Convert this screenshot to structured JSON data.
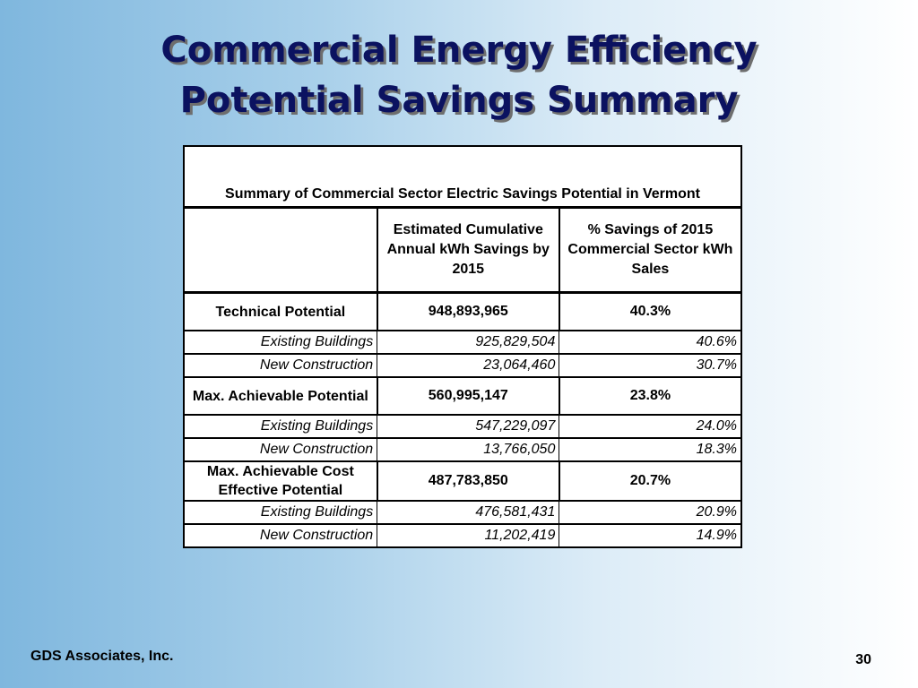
{
  "slide": {
    "title_line1": "Commercial Energy Efficiency",
    "title_line2": "Potential Savings Summary",
    "footer_company": "GDS Associates, Inc.",
    "page_number": "30"
  },
  "table": {
    "caption": "Summary of Commercial Sector Electric Savings Potential in Vermont",
    "headers": [
      "",
      "Estimated Cumulative Annual kWh Savings by 2015",
      "% Savings of 2015 Commercial Sector kWh Sales"
    ],
    "rows": [
      {
        "label": "Technical Potential",
        "kwh": "948,893,965",
        "pct": "40.3%"
      },
      {
        "label": "Existing Buildings",
        "kwh": "925,829,504",
        "pct": "40.6%"
      },
      {
        "label": "New Construction",
        "kwh": "23,064,460",
        "pct": "30.7%"
      },
      {
        "label": "Max. Achievable Potential",
        "kwh": "560,995,147",
        "pct": "23.8%"
      },
      {
        "label": "Existing Buildings",
        "kwh": "547,229,097",
        "pct": "24.0%"
      },
      {
        "label": "New Construction",
        "kwh": "13,766,050",
        "pct": "18.3%"
      },
      {
        "label": "Max. Achievable Cost Effective Potential",
        "kwh": "487,783,850",
        "pct": "20.7%"
      },
      {
        "label": "Existing Buildings",
        "kwh": "476,581,431",
        "pct": "20.9%"
      },
      {
        "label": "New Construction",
        "kwh": "11,202,419",
        "pct": "14.9%"
      }
    ]
  },
  "colors": {
    "title": "#0b1260",
    "background_left": "#7fb7de",
    "background_right": "#ffffff"
  }
}
